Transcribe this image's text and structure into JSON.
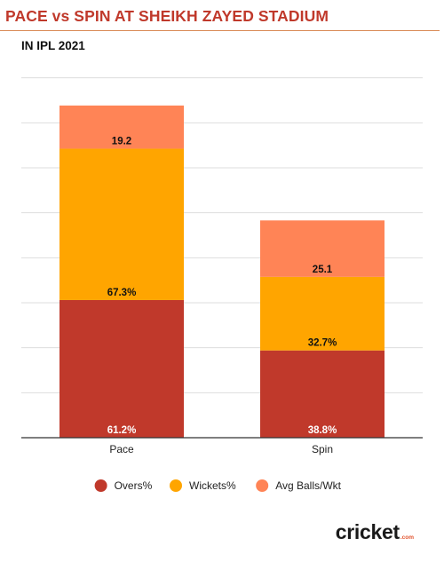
{
  "header": {
    "title": "PACE vs SPIN AT SHEIKH ZAYED STADIUM",
    "subtitle": "IN IPL 2021"
  },
  "brand": {
    "main": "cricket",
    "sub": ".com"
  },
  "colors": {
    "title": "#c0392b",
    "overs": "#c0392b",
    "wickets": "#ffa500",
    "avg": "#ff8456",
    "grid": "#dddddd"
  },
  "chart_data": {
    "type": "bar",
    "stacked": true,
    "categories": [
      "Pace",
      "Spin"
    ],
    "series": [
      {
        "name": "Overs%",
        "values": [
          61.2,
          38.8
        ],
        "labels": [
          "61.2%",
          "38.8%"
        ],
        "color": "#c0392b"
      },
      {
        "name": "Wickets%",
        "values": [
          67.3,
          32.7
        ],
        "labels": [
          "67.3%",
          "32.7%"
        ],
        "color": "#ffa500"
      },
      {
        "name": "Avg Balls/Wkt",
        "values": [
          19.2,
          25.1
        ],
        "labels": [
          "19.2",
          "25.1"
        ],
        "color": "#ff8456"
      }
    ],
    "ylim": [
      0,
      165
    ],
    "grid": true,
    "legend": "bottom"
  }
}
